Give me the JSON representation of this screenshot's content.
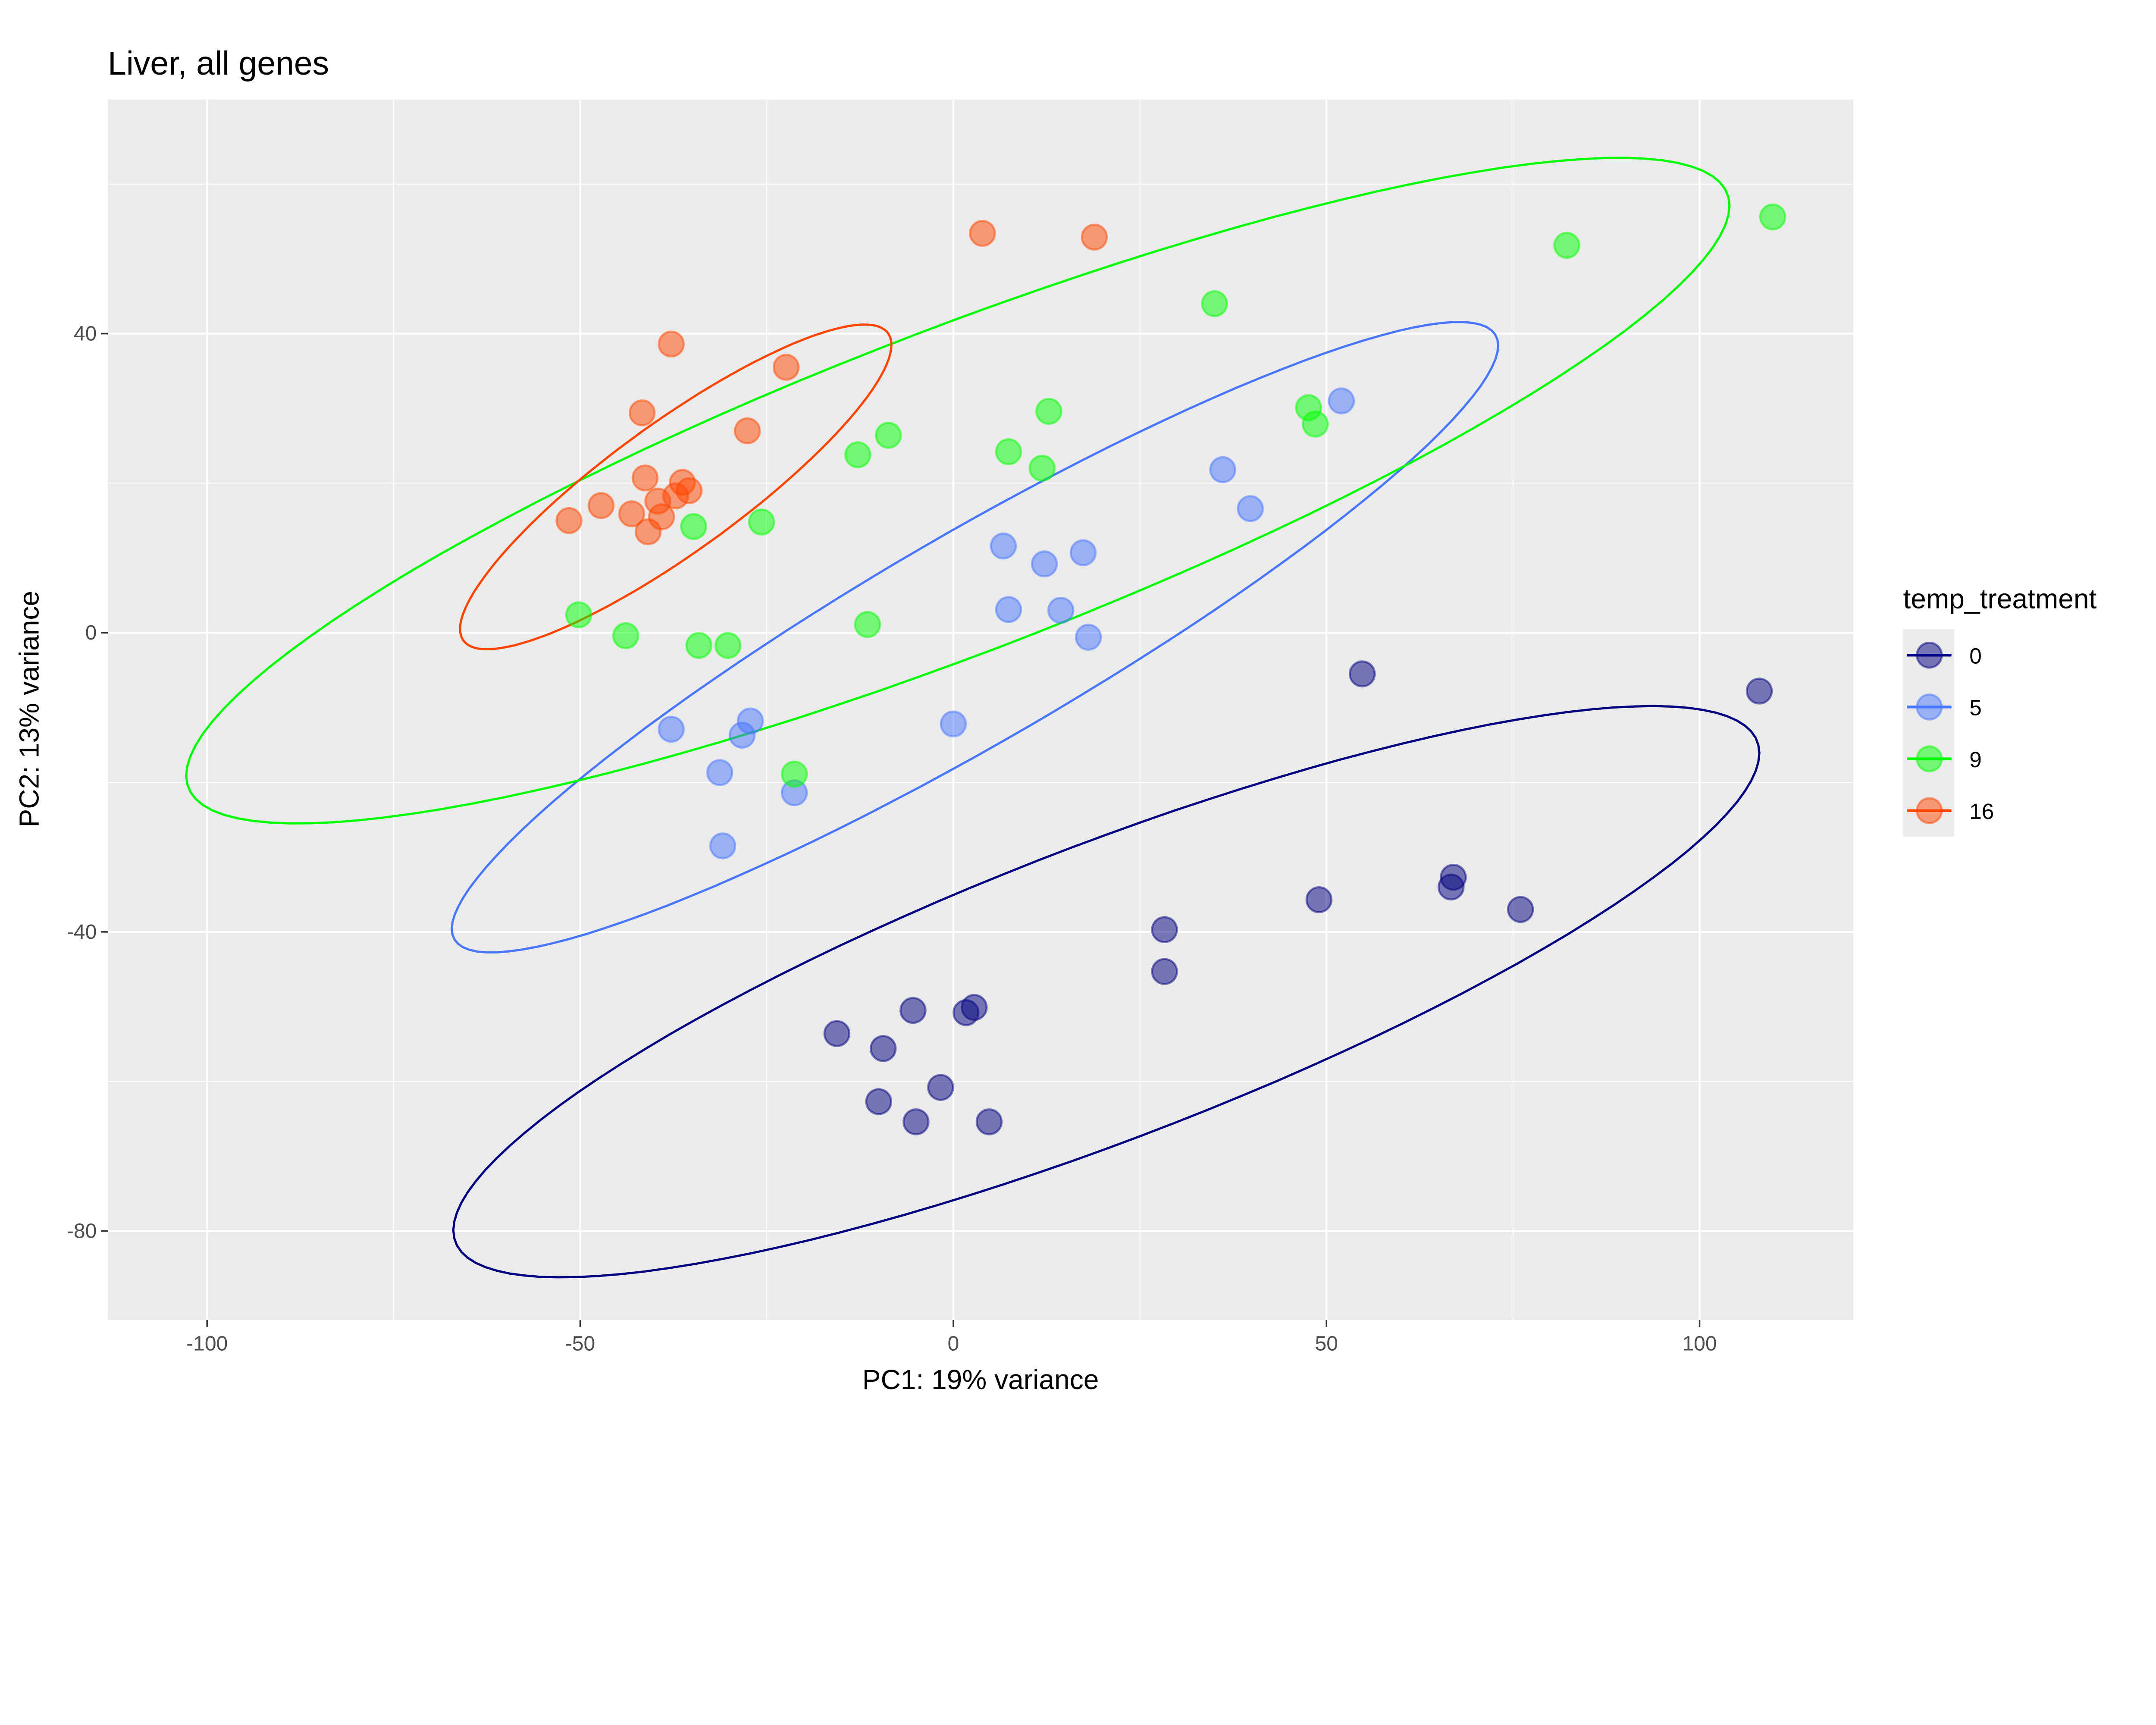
{
  "chart_data": {
    "type": "scatter",
    "title": "Liver, all genes",
    "xlabel": "PC1: 19% variance",
    "ylabel": "PC2: 13% variance",
    "xlim": [
      -113.3,
      120.6
    ],
    "ylim": [
      -91.9,
      71.3
    ],
    "xticks": [
      -100,
      -50,
      0,
      50,
      100
    ],
    "xtick_labels": [
      "-100",
      "-50",
      "0",
      "50",
      "100"
    ],
    "yticks": [
      -80,
      -40,
      0,
      40
    ],
    "ytick_labels": [
      "-80",
      "-40",
      "0",
      "40"
    ],
    "grid": true,
    "legend": {
      "title": "temp_treatment",
      "placement": "right"
    },
    "series": [
      {
        "name": "0",
        "color": "#000080",
        "fill": "#000080",
        "ellipse": {
          "center": [
            20.5,
            -48
          ],
          "u": [
            87.5,
            31.9
          ],
          "v": [
            0,
            21
          ]
        },
        "points": [
          [
            54.8,
            -5.5
          ],
          [
            108,
            -7.8
          ],
          [
            67,
            -32.7
          ],
          [
            66.7,
            -34
          ],
          [
            49,
            -35.7
          ],
          [
            76,
            -37
          ],
          [
            28.3,
            -39.7
          ],
          [
            28.3,
            -45.3
          ],
          [
            -5.4,
            -50.5
          ],
          [
            2.8,
            -50.1
          ],
          [
            1.7,
            -50.8
          ],
          [
            -15.6,
            -53.6
          ],
          [
            -9.4,
            -55.6
          ],
          [
            -1.7,
            -60.8
          ],
          [
            -10,
            -62.7
          ],
          [
            -5,
            -65.4
          ],
          [
            4.8,
            -65.4
          ]
        ]
      },
      {
        "name": "5",
        "color": "#4876FF",
        "fill": "#4876FF",
        "ellipse": {
          "center": [
            2.9,
            -0.6
          ],
          "u": [
            70.1,
            39
          ],
          "v": [
            0,
            16
          ]
        },
        "points": [
          [
            52,
            31
          ],
          [
            36.1,
            21.8
          ],
          [
            39.8,
            16.6
          ],
          [
            6.7,
            11.6
          ],
          [
            17.4,
            10.7
          ],
          [
            12.2,
            9.2
          ],
          [
            7.4,
            3.1
          ],
          [
            14.4,
            3
          ],
          [
            18.1,
            -0.6
          ],
          [
            0,
            -12.2
          ],
          [
            -37.8,
            -12.9
          ],
          [
            -27.2,
            -11.8
          ],
          [
            -28.3,
            -13.7
          ],
          [
            -31.3,
            -18.7
          ],
          [
            -21.3,
            -21.4
          ],
          [
            -30.9,
            -28.5
          ]
        ]
      },
      {
        "name": "9",
        "color": "#00FF00",
        "fill": "#00FF00",
        "ellipse": {
          "center": [
            0.6,
            19
          ],
          "u": [
            103.4,
            38.1
          ],
          "v": [
            0,
            23
          ]
        },
        "points": [
          [
            109.8,
            55.6
          ],
          [
            82.2,
            51.8
          ],
          [
            35,
            44
          ],
          [
            12.8,
            29.6
          ],
          [
            47.6,
            30.1
          ],
          [
            48.5,
            27.9
          ],
          [
            -8.7,
            26.4
          ],
          [
            -12.8,
            23.8
          ],
          [
            7.4,
            24.2
          ],
          [
            11.9,
            22
          ],
          [
            -25.7,
            14.8
          ],
          [
            -34.8,
            14.2
          ],
          [
            -50.2,
            2.4
          ],
          [
            -43.9,
            -0.4
          ],
          [
            -34.1,
            -1.7
          ],
          [
            -30.2,
            -1.7
          ],
          [
            -11.5,
            1.1
          ],
          [
            -21.3,
            -18.9
          ]
        ]
      },
      {
        "name": "16",
        "color": "#FF4500",
        "fill": "#FF4500",
        "ellipse": {
          "center": [
            -37.2,
            19.5
          ],
          "u": [
            28.9,
            19
          ],
          "v": [
            0,
            10.5
          ]
        },
        "points": [
          [
            3.9,
            53.4
          ],
          [
            18.9,
            52.9
          ],
          [
            -37.8,
            38.6
          ],
          [
            -22.4,
            35.5
          ],
          [
            -41.7,
            29.4
          ],
          [
            -27.6,
            27
          ],
          [
            -41.3,
            20.7
          ],
          [
            -36.3,
            20.1
          ],
          [
            -35.4,
            19
          ],
          [
            -37.2,
            18.3
          ],
          [
            -39.6,
            17.6
          ],
          [
            -47.2,
            17
          ],
          [
            -43.1,
            15.9
          ],
          [
            -39.1,
            15.5
          ],
          [
            -51.5,
            15
          ],
          [
            -40.9,
            13.5
          ]
        ]
      }
    ]
  }
}
